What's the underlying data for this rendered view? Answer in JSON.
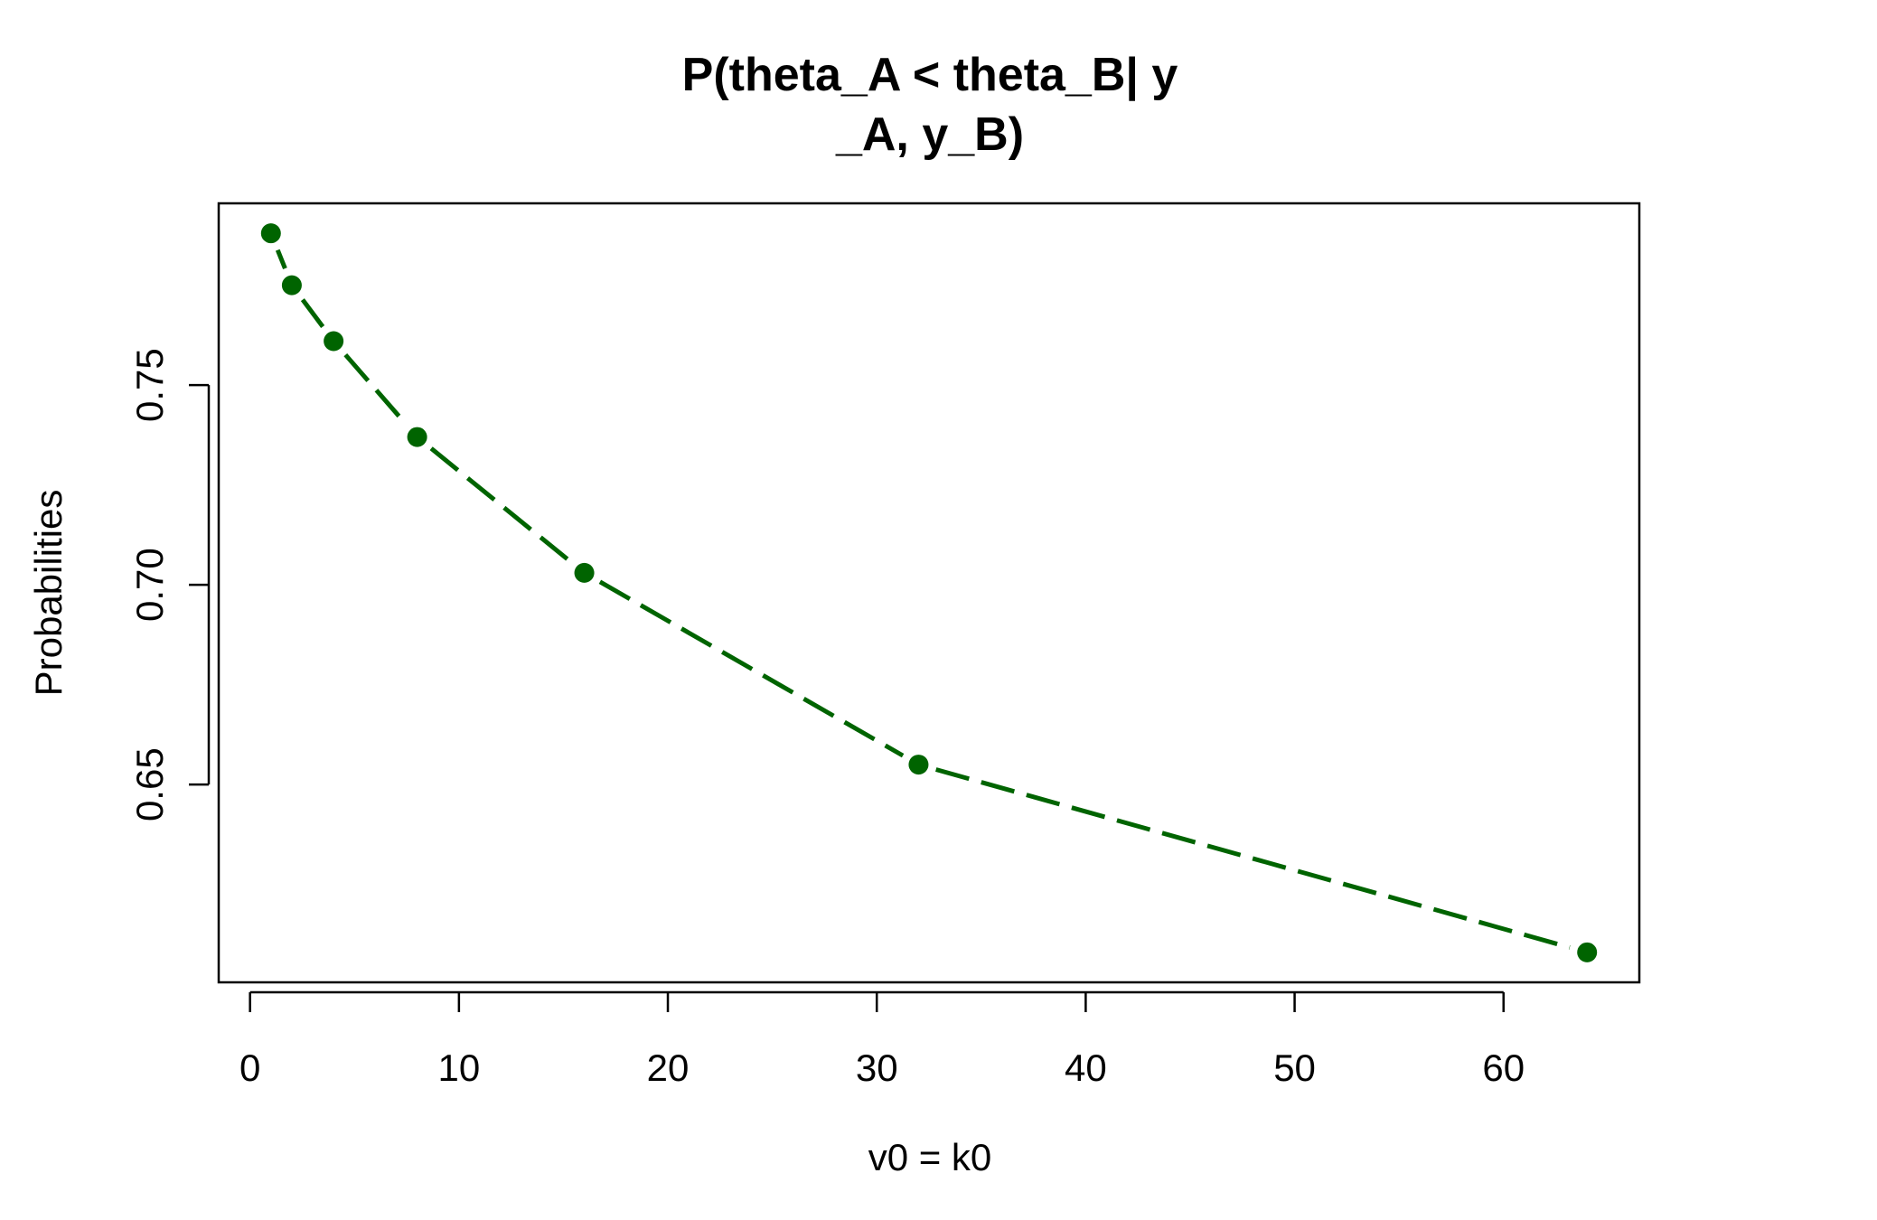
{
  "chart_data": {
    "type": "line",
    "title_lines": [
      "P(theta_A < theta_B| y",
      "_A, y_B)"
    ],
    "xlabel": "v0 = k0",
    "ylabel": "Probabilities",
    "x_ticks": [
      0,
      10,
      20,
      30,
      40,
      50,
      60
    ],
    "x_tick_labels": [
      "0",
      "10",
      "20",
      "30",
      "40",
      "50",
      "60"
    ],
    "y_ticks": [
      0.65,
      0.7,
      0.75
    ],
    "y_tick_labels": [
      "0.65",
      "0.70",
      "0.75"
    ],
    "xlim": [
      -1.5,
      66.5
    ],
    "ylim": [
      0.6005,
      0.7955
    ],
    "grid": false,
    "legend": "none",
    "series": [
      {
        "x": [
          1,
          2,
          4,
          8,
          16,
          32,
          64
        ],
        "y": [
          0.788,
          0.775,
          0.761,
          0.737,
          0.703,
          0.655,
          0.608
        ],
        "color": "#006400",
        "line_style": "dashed"
      }
    ]
  }
}
